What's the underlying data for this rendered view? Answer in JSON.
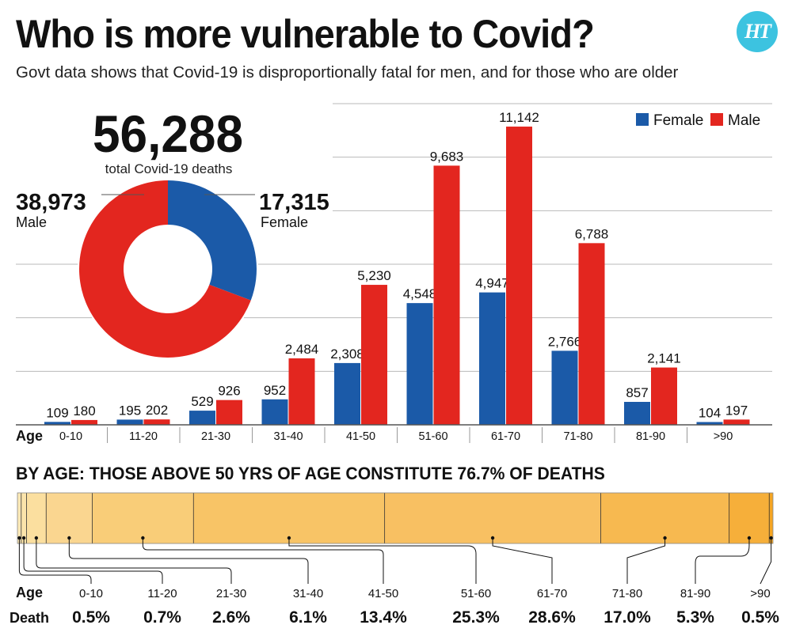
{
  "title": "Who is more vulnerable to Covid?",
  "subtitle": "Govt data shows that Covid-19 is disproportionally fatal for men, and for those who are older",
  "logo_text": "HT",
  "colors": {
    "female": "#1b5aa8",
    "male": "#e3261f",
    "grid": "#b9b9b9",
    "strip_light": "#fbe3a9",
    "strip_dark": "#f6a31e"
  },
  "chart_data": [
    {
      "type": "bar",
      "categories": [
        "0-10",
        "11-20",
        "21-30",
        "31-40",
        "41-50",
        "51-60",
        "61-70",
        "71-80",
        "81-90",
        ">90"
      ],
      "xlabel": "Age",
      "ylim": [
        0,
        12000
      ],
      "grid": true,
      "legend_position": "top-right",
      "series": [
        {
          "name": "Female",
          "values": [
            109,
            195,
            529,
            952,
            2308,
            4548,
            4947,
            2766,
            857,
            104
          ],
          "labels": [
            "109",
            "195",
            "529",
            "952",
            "2,308",
            "4,548",
            "4,947",
            "2,766",
            "857",
            "104"
          ]
        },
        {
          "name": "Male",
          "values": [
            180,
            202,
            926,
            2484,
            5230,
            9683,
            11142,
            6788,
            2141,
            197
          ],
          "labels": [
            "180",
            "202",
            "926",
            "2,484",
            "5,230",
            "9,683",
            "11,142",
            "6,788",
            "2,141",
            "197"
          ]
        }
      ]
    },
    {
      "type": "pie",
      "donut": true,
      "title": "56,288",
      "subtitle": "total Covid-19 deaths",
      "slices": [
        {
          "name": "Female",
          "value": 17315,
          "label": "17,315"
        },
        {
          "name": "Male",
          "value": 38973,
          "label": "38,973"
        }
      ]
    },
    {
      "type": "bar",
      "stacked": true,
      "title": "BY AGE: THOSE ABOVE 50 YRS OF AGE CONSTITUTE 76.7% OF DEATHS",
      "row_labels": [
        "Age",
        "Death"
      ],
      "categories": [
        "0-10",
        "11-20",
        "21-30",
        "31-40",
        "41-50",
        "51-60",
        "61-70",
        "71-80",
        "81-90",
        ">90"
      ],
      "values": [
        0.5,
        0.7,
        2.6,
        6.1,
        13.4,
        25.3,
        28.6,
        17.0,
        5.3,
        0.5
      ],
      "labels": [
        "0.5%",
        "0.7%",
        "2.6%",
        "6.1%",
        "13.4%",
        "25.3%",
        "28.6%",
        "17.0%",
        "5.3%",
        "0.5%"
      ]
    }
  ]
}
